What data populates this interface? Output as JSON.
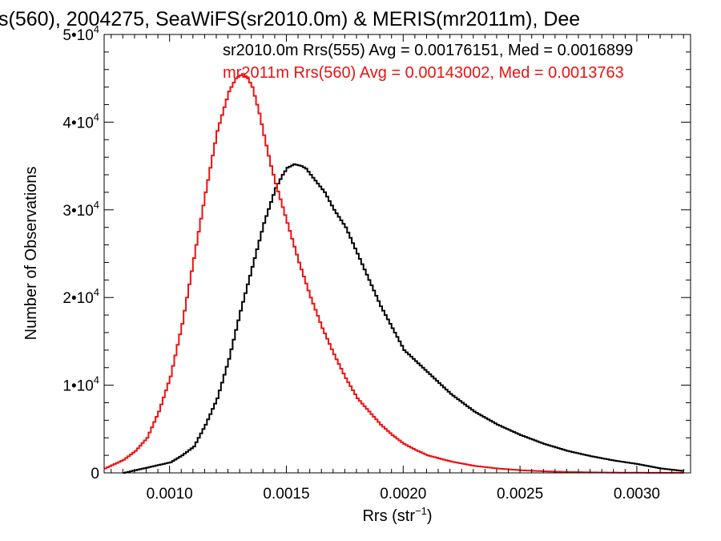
{
  "chart_data": {
    "type": "line",
    "step": true,
    "title": "s(560), 2004275, SeaWiFS(sr2010.0m) & MERIS(mr2011m), Dee",
    "xlabel": "Rrs (str",
    "xlabel_sup": "−1",
    "xlabel_end": ")",
    "ylabel": "Number of Observations",
    "xlim": [
      0.00072,
      0.00323
    ],
    "ylim": [
      0,
      50000
    ],
    "x_ticks": [
      0.001,
      0.0015,
      0.002,
      0.0025,
      0.003
    ],
    "x_tick_labels": [
      "0.0010",
      "0.0015",
      "0.0020",
      "0.0025",
      "0.0030"
    ],
    "y_ticks": [
      0,
      10000,
      20000,
      30000,
      40000,
      50000
    ],
    "y_tick_labels": [
      {
        "base": "0",
        "exp": ""
      },
      {
        "base": "1•10",
        "exp": "4"
      },
      {
        "base": "2•10",
        "exp": "4"
      },
      {
        "base": "3•10",
        "exp": "4"
      },
      {
        "base": "4•10",
        "exp": "4"
      },
      {
        "base": "5•10",
        "exp": "4"
      }
    ],
    "series": [
      {
        "name": "sr2010.0m Rrs(555)",
        "legend": "sr2010.0m Rrs(555) Avg = 0.00176151, Med = 0.0016899",
        "color": "#000000",
        "x": [
          0.0008,
          0.0009,
          0.001,
          0.00105,
          0.0011,
          0.00115,
          0.0012,
          0.00125,
          0.0013,
          0.00135,
          0.0014,
          0.00145,
          0.00148,
          0.0015,
          0.00153,
          0.00156,
          0.00158,
          0.0016,
          0.00163,
          0.00166,
          0.0017,
          0.00175,
          0.0018,
          0.00185,
          0.0019,
          0.00195,
          0.002,
          0.0021,
          0.0022,
          0.0023,
          0.0024,
          0.0025,
          0.0026,
          0.0027,
          0.0028,
          0.0029,
          0.003,
          0.0031,
          0.0032
        ],
        "y": [
          0,
          600,
          1200,
          2000,
          3000,
          5500,
          8500,
          13000,
          18500,
          23500,
          28500,
          32500,
          34000,
          34800,
          35200,
          35000,
          34700,
          34000,
          33000,
          32000,
          30000,
          28000,
          25000,
          22000,
          19000,
          16500,
          14000,
          11500,
          9000,
          7000,
          5500,
          4300,
          3300,
          2500,
          1900,
          1400,
          1000,
          500,
          200
        ]
      },
      {
        "name": "mr2011m Rrs(560)",
        "legend": "mr2011m Rrs(560) Avg = 0.00143002, Med = 0.0013763",
        "color": "#ee1111",
        "x": [
          0.00072,
          0.0008,
          0.00085,
          0.0009,
          0.00095,
          0.001,
          0.00105,
          0.0011,
          0.00115,
          0.0012,
          0.00125,
          0.00128,
          0.00131,
          0.00133,
          0.00135,
          0.00138,
          0.0014,
          0.00143,
          0.00145,
          0.0015,
          0.00155,
          0.0016,
          0.00165,
          0.0017,
          0.00175,
          0.0018,
          0.00185,
          0.0019,
          0.00195,
          0.002,
          0.00205,
          0.0021,
          0.0022,
          0.0023,
          0.0024,
          0.0025,
          0.0026,
          0.0027,
          0.0028,
          0.0029,
          0.003,
          0.0031,
          0.0032
        ],
        "y": [
          500,
          1500,
          2500,
          4000,
          7000,
          11000,
          17000,
          24500,
          32000,
          39000,
          43500,
          45000,
          45500,
          45000,
          44000,
          41000,
          38500,
          35000,
          33000,
          28500,
          24000,
          20000,
          16500,
          13500,
          10800,
          8500,
          7000,
          5500,
          4300,
          3300,
          2600,
          2000,
          1300,
          800,
          500,
          300,
          180,
          100,
          60,
          30,
          20,
          10,
          5
        ]
      }
    ]
  }
}
